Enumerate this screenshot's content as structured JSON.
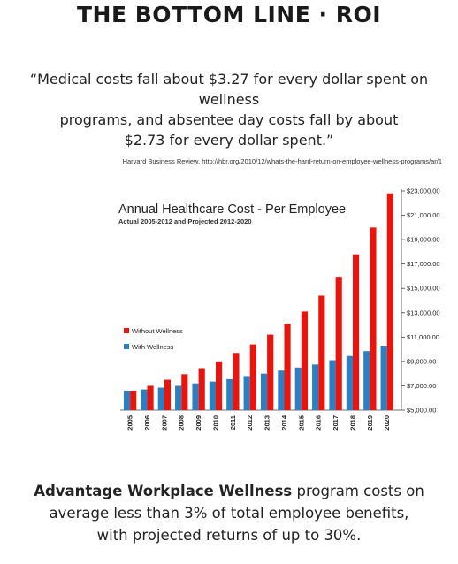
{
  "header": {
    "title": "THE BOTTOM LINE · ROI"
  },
  "quote": {
    "line1": "“Medical costs fall about $3.27 for every dollar spent on wellness",
    "line2": "programs, and absentee day costs fall by about",
    "line3": "$2.73 for every dollar spent.”"
  },
  "source": "Harvard Business Review, http://hbr.org/2010/12/whats-the-hard-return-on-employee-wellness-programs/ar/1",
  "footer": {
    "bold_text": "Advantage Workplace Wellness",
    "line1_rest": " program costs on",
    "line2": "average less than 3% of total employee benefits,",
    "line3": "with projected returns of up to 30%."
  },
  "chart_data": {
    "type": "bar",
    "title": "Annual Healthcare Cost - Per Employee",
    "subtitle": "Actual 2005-2012 and Projected 2012-2020",
    "categories": [
      "2005",
      "2006",
      "2007",
      "2008",
      "2009",
      "2010",
      "2011",
      "2012",
      "2013",
      "2014",
      "2015",
      "2016",
      "2017",
      "2018",
      "2019",
      "2020"
    ],
    "series": [
      {
        "name": "Without Wellness",
        "color": "#e8150f",
        "values": [
          6600,
          7000,
          7500,
          7950,
          8450,
          9000,
          9700,
          10400,
          11200,
          12100,
          13100,
          14400,
          15950,
          17800,
          20000,
          22800
        ]
      },
      {
        "name": "With Wellness",
        "color": "#2d7fc1",
        "values": [
          6600,
          6700,
          6850,
          7000,
          7200,
          7350,
          7550,
          7800,
          8000,
          8250,
          8500,
          8750,
          9100,
          9450,
          9850,
          10300
        ]
      }
    ],
    "ylim": [
      5000,
      23000
    ],
    "yticks": [
      5000,
      7000,
      9000,
      11000,
      13000,
      15000,
      17000,
      19000,
      21000,
      23000
    ],
    "ytick_labels": [
      "$5,000.00",
      "$7,000.00",
      "$9,000.00",
      "$11,000.00",
      "$13,000.00",
      "$15,000.00",
      "$17,000.00",
      "$19,000.00",
      "$21,000.00",
      "$23,000.00"
    ],
    "y_axis_side": "right",
    "legend_placement": "middle-left",
    "grid": false
  }
}
